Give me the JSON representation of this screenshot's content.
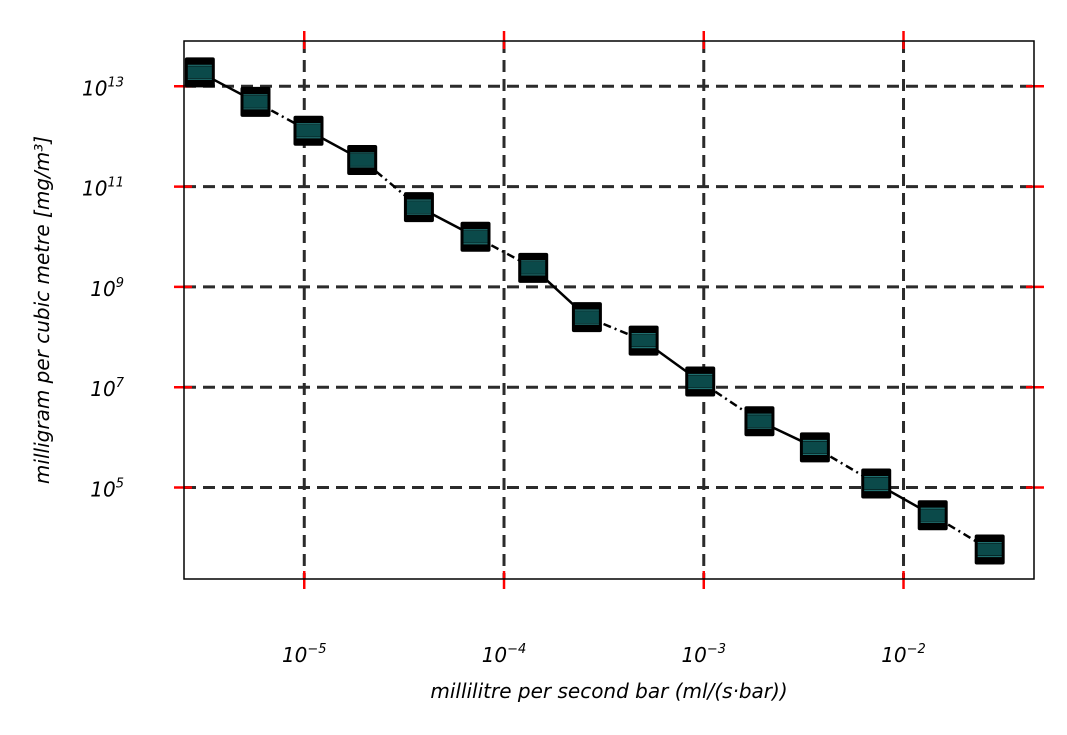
{
  "chart_data": {
    "type": "line",
    "title": "",
    "xlabel": "millilitre per second bar (ml/(s·bar))",
    "ylabel": "milligram per cubic metre [mg/m³]",
    "x_scale": "log",
    "y_scale": "log",
    "xlim": [
      2.5e-06,
      0.045
    ],
    "ylim": [
      1500,
      80000000000000
    ],
    "x_ticks": [
      {
        "value": 1e-05,
        "base": "10",
        "exp": "−5"
      },
      {
        "value": 0.0001,
        "base": "10",
        "exp": "−4"
      },
      {
        "value": 0.001,
        "base": "10",
        "exp": "−3"
      },
      {
        "value": 0.01,
        "base": "10",
        "exp": "−2"
      }
    ],
    "y_ticks": [
      {
        "value": 100000,
        "base": "10",
        "exp": "5"
      },
      {
        "value": 10000000,
        "base": "10",
        "exp": "7"
      },
      {
        "value": 1000000000,
        "base": "10",
        "exp": "9"
      },
      {
        "value": 100000000000,
        "base": "10",
        "exp": "11"
      },
      {
        "value": 10000000000000,
        "base": "10",
        "exp": "13"
      }
    ],
    "grid": true,
    "legend": "none",
    "colors": {
      "line": "#000000",
      "marker_fill": "#0b4a4a",
      "marker_edge": "#000000",
      "grid": "#2b2b2b",
      "tick": "#ff0000"
    },
    "series": [
      {
        "x": [
          3e-06,
          5.7e-06,
          1.05e-05,
          1.95e-05,
          3.75e-05,
          7.2e-05,
          0.00014,
          0.00026,
          0.0005,
          0.00096,
          0.0019,
          0.0036,
          0.0073,
          0.014,
          0.027
        ],
        "y": [
          19000000000000,
          4900000000000,
          1300000000000,
          340000000000,
          39000000000,
          10000000000,
          2400000000,
          250000000,
          85000000,
          13000000,
          2100000,
          630000,
          120000,
          28000,
          5800
        ]
      }
    ]
  }
}
